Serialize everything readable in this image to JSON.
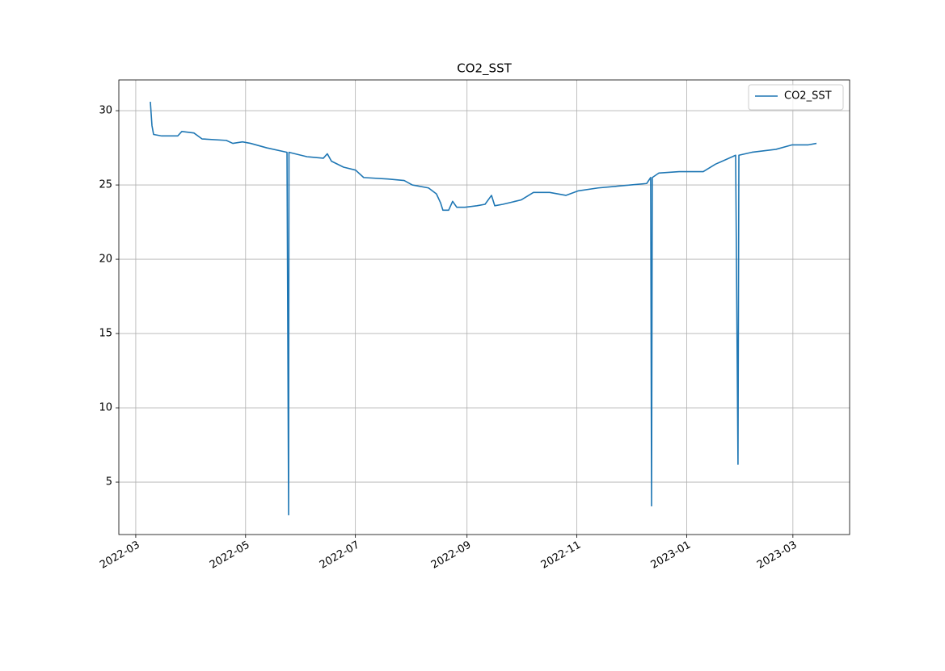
{
  "chart_data": {
    "type": "line",
    "title": "CO2_SST",
    "xlim": [
      19042.6,
      19448.5
    ],
    "xticks": [
      {
        "value": 19052,
        "label": "2022-03"
      },
      {
        "value": 19113,
        "label": "2022-05"
      },
      {
        "value": 19174,
        "label": "2022-07"
      },
      {
        "value": 19236,
        "label": "2022-09"
      },
      {
        "value": 19297,
        "label": "2022-11"
      },
      {
        "value": 19358,
        "label": "2023-01"
      },
      {
        "value": 19417,
        "label": "2023-03"
      }
    ],
    "ylim": [
      1.47,
      32.07
    ],
    "yticks": [
      5,
      10,
      15,
      20,
      25,
      30
    ],
    "grid": true,
    "legend": "upper right",
    "x": [
      19060.1,
      19061.0,
      19061.9,
      19066.4,
      19075.3,
      19077.6,
      19084.3,
      19088.8,
      19102.3,
      19105.9,
      19111.3,
      19115.8,
      19124.7,
      19136.0,
      19136.9,
      19137.1,
      19147.2,
      19156.2,
      19158.4,
      19160.7,
      19167.4,
      19174.1,
      19178.6,
      19192.1,
      19201.1,
      19205.6,
      19214.6,
      19219.0,
      19221.3,
      19222.6,
      19225.8,
      19228.0,
      19230.3,
      19234.8,
      19241.5,
      19246.0,
      19249.6,
      19251.4,
      19255.9,
      19266.2,
      19272.9,
      19281.9,
      19290.9,
      19297.6,
      19308.8,
      19317.8,
      19326.8,
      19335.8,
      19338.0,
      19338.5,
      19338.9,
      19342.5,
      19353.8,
      19367.2,
      19374.0,
      19385.2,
      19386.5,
      19387.0,
      19394.2,
      19407.6,
      19416.6,
      19425.6,
      19430.1
    ],
    "series": [
      {
        "name": "CO2_SST",
        "color": "#1f77b4",
        "values": [
          30.6,
          29.0,
          28.4,
          28.3,
          28.3,
          28.6,
          28.5,
          28.1,
          28.0,
          27.8,
          27.9,
          27.8,
          27.5,
          27.2,
          2.8,
          27.2,
          26.9,
          26.8,
          27.1,
          26.6,
          26.2,
          26.0,
          25.5,
          25.4,
          25.3,
          25.0,
          24.8,
          24.4,
          23.8,
          23.3,
          23.3,
          23.9,
          23.5,
          23.5,
          23.6,
          23.7,
          24.3,
          23.6,
          23.7,
          24.0,
          24.5,
          24.5,
          24.3,
          24.6,
          24.8,
          24.9,
          25.0,
          25.1,
          25.5,
          3.4,
          25.5,
          25.8,
          25.9,
          25.9,
          26.4,
          27.0,
          6.2,
          27.0,
          27.2,
          27.4,
          27.7,
          27.7,
          27.8
        ]
      }
    ]
  }
}
